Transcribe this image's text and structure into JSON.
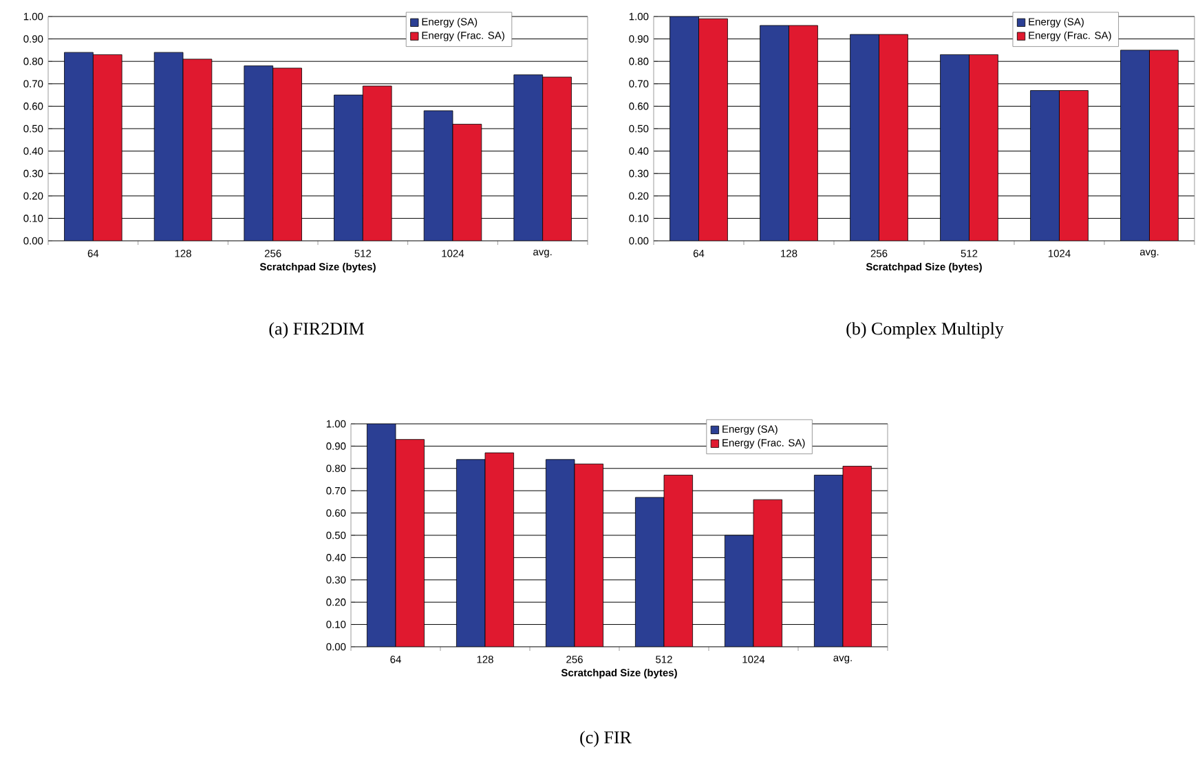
{
  "chart_data": [
    {
      "type": "bar",
      "xlabel": "Scratchpad Size (bytes)",
      "annotations": [
        "(a) FIR2DIM"
      ],
      "categories": [
        "64",
        "128",
        "256",
        "512",
        "1024",
        "avg."
      ],
      "series": [
        {
          "name": "Energy (SA)",
          "color": "#2b3f94",
          "values": [
            0.84,
            0.84,
            0.78,
            0.65,
            0.58,
            0.74
          ]
        },
        {
          "name": "Energy (Frac. SA)",
          "color": "#e0192f",
          "values": [
            0.83,
            0.81,
            0.77,
            0.69,
            0.52,
            0.73
          ]
        }
      ],
      "ylim": [
        0,
        1
      ],
      "yticks": [
        {
          "value": 0,
          "label": "0.00"
        },
        {
          "value": 0.1,
          "label": "0.10"
        },
        {
          "value": 0.2,
          "label": "0.20"
        },
        {
          "value": 0.3,
          "label": "0.30"
        },
        {
          "value": 0.4,
          "label": "0.40"
        },
        {
          "value": 0.5,
          "label": "0.50"
        },
        {
          "value": 0.6,
          "label": "0.60"
        },
        {
          "value": 0.7,
          "label": "0.70"
        },
        {
          "value": 0.8,
          "label": "0.80"
        },
        {
          "value": 0.9,
          "label": "0.90"
        },
        {
          "value": 1,
          "label": "1.00"
        }
      ],
      "grid": "y",
      "legend": "top right"
    },
    {
      "type": "bar",
      "xlabel": "Scratchpad Size (bytes)",
      "annotations": [
        "(b) Complex Multiply"
      ],
      "categories": [
        "64",
        "128",
        "256",
        "512",
        "1024",
        "avg."
      ],
      "series": [
        {
          "name": "Energy (SA)",
          "color": "#2b3f94",
          "values": [
            1.0,
            0.96,
            0.92,
            0.83,
            0.67,
            0.85
          ]
        },
        {
          "name": "Energy (Frac. SA)",
          "color": "#e0192f",
          "values": [
            0.99,
            0.96,
            0.92,
            0.83,
            0.67,
            0.85
          ]
        }
      ],
      "ylim": [
        0,
        1
      ],
      "yticks": [
        {
          "value": 0,
          "label": "0.00"
        },
        {
          "value": 0.1,
          "label": "0.10"
        },
        {
          "value": 0.2,
          "label": "0.20"
        },
        {
          "value": 0.3,
          "label": "0.30"
        },
        {
          "value": 0.4,
          "label": "0.40"
        },
        {
          "value": 0.5,
          "label": "0.50"
        },
        {
          "value": 0.6,
          "label": "0.60"
        },
        {
          "value": 0.7,
          "label": "0.70"
        },
        {
          "value": 0.8,
          "label": "0.80"
        },
        {
          "value": 0.9,
          "label": "0.90"
        },
        {
          "value": 1,
          "label": "1.00"
        }
      ],
      "grid": "y",
      "legend": "top right"
    },
    {
      "type": "bar",
      "xlabel": "Scratchpad Size (bytes)",
      "annotations": [
        "(c) FIR"
      ],
      "categories": [
        "64",
        "128",
        "256",
        "512",
        "1024",
        "avg."
      ],
      "series": [
        {
          "name": "Energy (SA)",
          "color": "#2b3f94",
          "values": [
            1.0,
            0.84,
            0.84,
            0.67,
            0.5,
            0.77
          ]
        },
        {
          "name": "Energy (Frac. SA)",
          "color": "#e0192f",
          "values": [
            0.93,
            0.87,
            0.82,
            0.77,
            0.66,
            0.81
          ]
        }
      ],
      "ylim": [
        0,
        1
      ],
      "yticks": [
        {
          "value": 0,
          "label": "0.00"
        },
        {
          "value": 0.1,
          "label": "0.10"
        },
        {
          "value": 0.2,
          "label": "0.20"
        },
        {
          "value": 0.3,
          "label": "0.30"
        },
        {
          "value": 0.4,
          "label": "0.40"
        },
        {
          "value": 0.5,
          "label": "0.50"
        },
        {
          "value": 0.6,
          "label": "0.60"
        },
        {
          "value": 0.7,
          "label": "0.70"
        },
        {
          "value": 0.8,
          "label": "0.80"
        },
        {
          "value": 0.9,
          "label": "0.90"
        },
        {
          "value": 1,
          "label": "1.00"
        }
      ],
      "grid": "y",
      "legend": "top right"
    }
  ]
}
